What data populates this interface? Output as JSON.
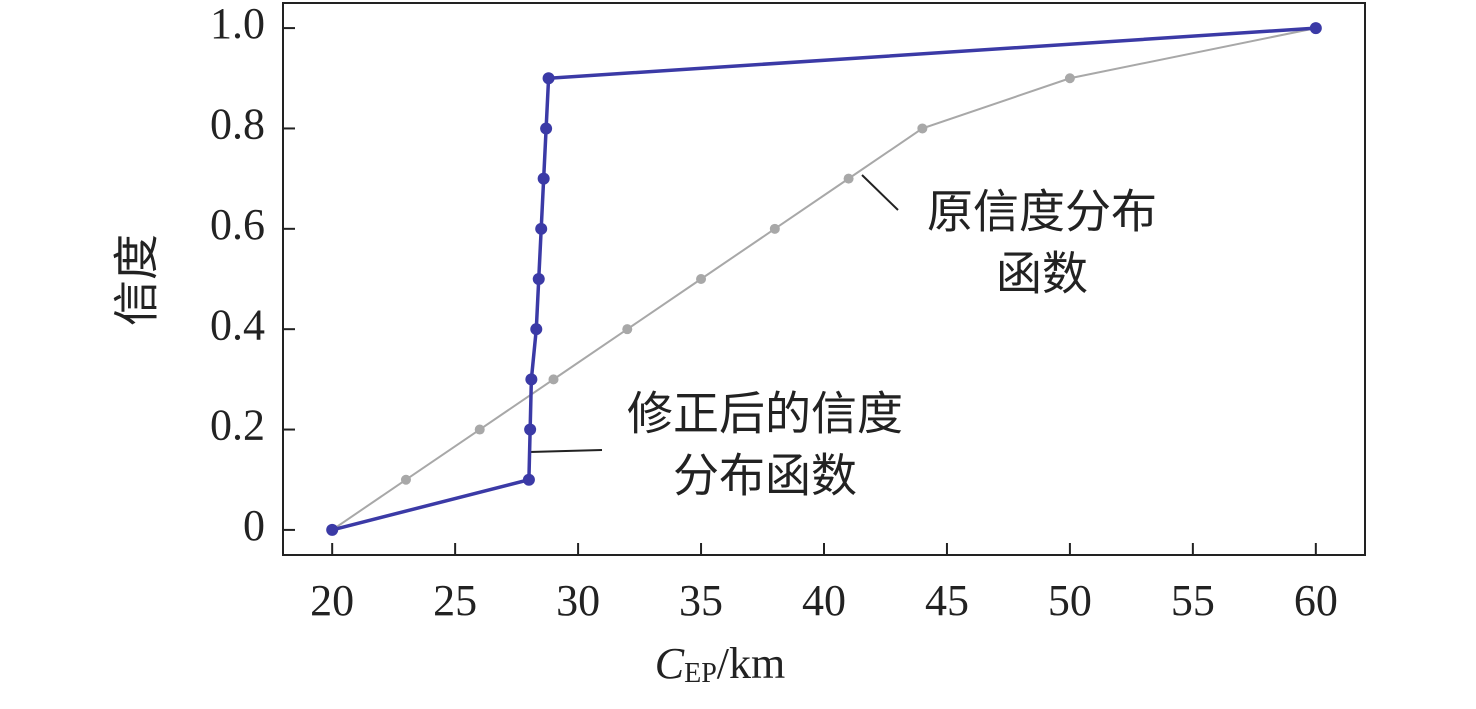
{
  "chart_data": {
    "type": "line",
    "x_label": {
      "main": "C",
      "sub": "EP",
      "unit": "/km"
    },
    "y_label": "信度",
    "xlim": [
      18,
      62
    ],
    "xticks": [
      20,
      25,
      30,
      35,
      40,
      45,
      50,
      55,
      60
    ],
    "ylim": [
      -0.05,
      1.05
    ],
    "yticks": [
      0,
      0.2,
      0.4,
      0.6,
      0.8,
      {
        "value": 1,
        "label": "1.0"
      }
    ],
    "series": [
      {
        "name": "原信度分布函数",
        "color": "#a8a8a8",
        "x": [
          20,
          23,
          26,
          29,
          32,
          35,
          38,
          41,
          44,
          50,
          60
        ],
        "values": [
          0,
          0.1,
          0.2,
          0.3,
          0.4,
          0.5,
          0.6,
          0.7,
          0.8,
          0.9,
          1
        ]
      },
      {
        "name": "修正后的信度分布函数",
        "color": "#3b3aa6",
        "x": [
          20,
          28,
          28.05,
          28.1,
          28.3,
          28.4,
          28.5,
          28.6,
          28.7,
          28.8,
          60
        ],
        "values": [
          0,
          0.1,
          0.2,
          0.3,
          0.4,
          0.5,
          0.6,
          0.7,
          0.8,
          0.9,
          1
        ]
      }
    ],
    "annotations": [
      {
        "lines": [
          "原信度分布",
          "函数"
        ]
      },
      {
        "lines": [
          "修正后的信度",
          "分布函数"
        ]
      }
    ]
  }
}
